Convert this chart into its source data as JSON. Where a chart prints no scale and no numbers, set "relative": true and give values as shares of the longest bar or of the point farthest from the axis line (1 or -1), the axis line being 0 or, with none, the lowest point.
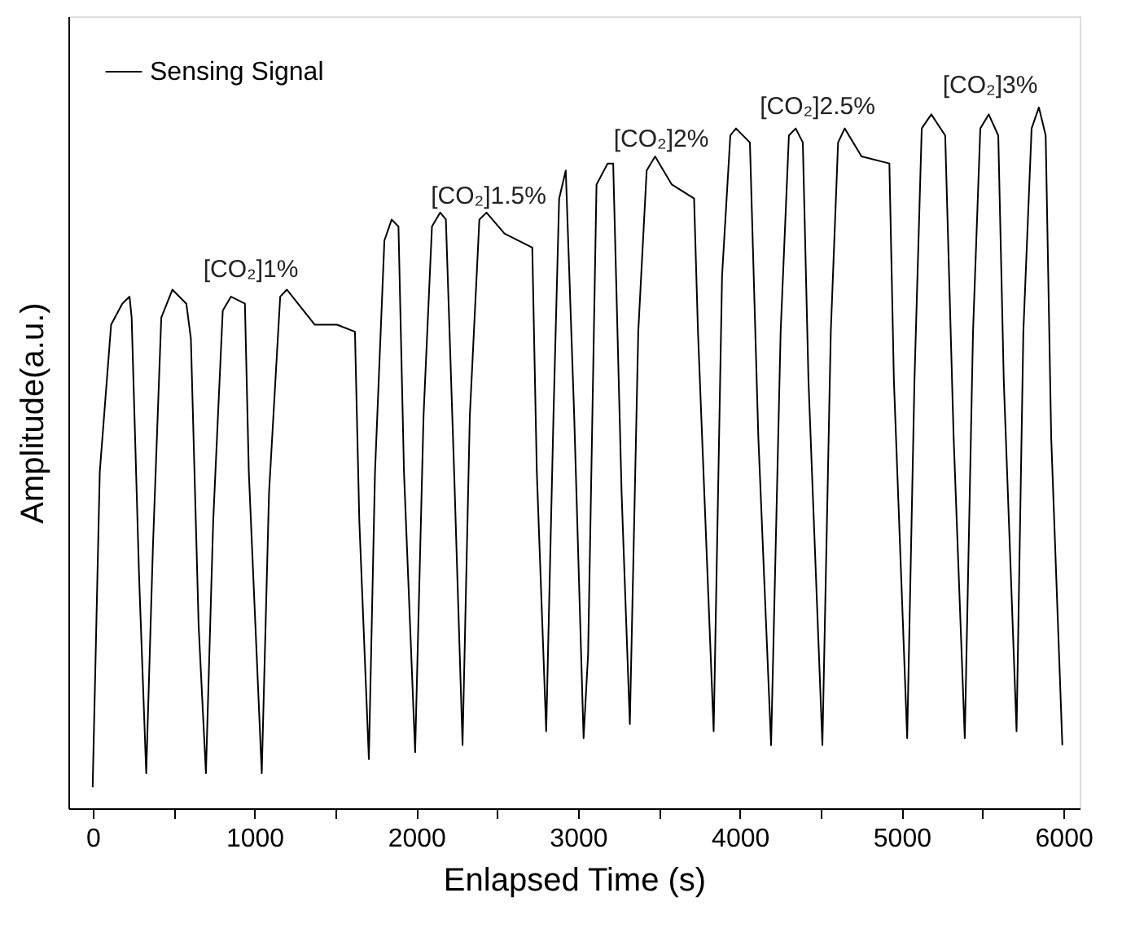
{
  "chart_data": {
    "type": "line",
    "relative": true,
    "xlabel": "Enlapsed Time (s)",
    "ylabel": "Amplitude(a.u.)",
    "xlim": [
      -150,
      6100
    ],
    "xticks": [
      0,
      {
        "value": 500,
        "label": null
      },
      1000,
      {
        "value": 1500,
        "label": null
      },
      2000,
      {
        "value": 2500,
        "label": null
      },
      3000,
      {
        "value": 3500,
        "label": null
      },
      4000,
      {
        "value": 4500,
        "label": null
      },
      5000,
      {
        "value": 5500,
        "label": null
      },
      6000
    ],
    "legend": "top left",
    "grid": false,
    "line_style": "solid",
    "series": [
      {
        "name": "Sensing Signal",
        "color": "#000000",
        "x": [
          0,
          44,
          114,
          183,
          228,
          241,
          287,
          331,
          372,
          424,
          493,
          579,
          607,
          655,
          700,
          745,
          804,
          855,
          941,
          965,
          1045,
          1090,
          1159,
          1200,
          1372,
          1510,
          1621,
          1648,
          1707,
          1745,
          1803,
          1848,
          1890,
          1924,
          1993,
          2045,
          2097,
          2148,
          2183,
          2234,
          2286,
          2331,
          2390,
          2434,
          2545,
          2717,
          2745,
          2803,
          2848,
          2883,
          2924,
          2976,
          3034,
          3062,
          3114,
          3183,
          3217,
          3269,
          3320,
          3372,
          3424,
          3476,
          3579,
          3717,
          3741,
          3838,
          3890,
          3941,
          3976,
          4062,
          4114,
          4193,
          4252,
          4303,
          4345,
          4389,
          4424,
          4510,
          4562,
          4607,
          4648,
          4752,
          4924,
          4952,
          5034,
          5079,
          5124,
          5183,
          5269,
          5321,
          5390,
          5441,
          5486,
          5538,
          5597,
          5631,
          5710,
          5752,
          5803,
          5848,
          5890,
          5924,
          5993
        ],
        "values": [
          0.03,
          0.48,
          0.69,
          0.72,
          0.73,
          0.7,
          0.33,
          0.05,
          0.37,
          0.7,
          0.74,
          0.72,
          0.67,
          0.26,
          0.05,
          0.41,
          0.71,
          0.73,
          0.72,
          0.48,
          0.05,
          0.45,
          0.73,
          0.74,
          0.69,
          0.69,
          0.68,
          0.41,
          0.07,
          0.48,
          0.81,
          0.84,
          0.83,
          0.48,
          0.08,
          0.56,
          0.83,
          0.85,
          0.84,
          0.48,
          0.09,
          0.56,
          0.84,
          0.85,
          0.82,
          0.8,
          0.48,
          0.11,
          0.56,
          0.87,
          0.91,
          0.56,
          0.1,
          0.22,
          0.89,
          0.92,
          0.92,
          0.45,
          0.12,
          0.68,
          0.91,
          0.93,
          0.89,
          0.87,
          0.68,
          0.11,
          0.76,
          0.96,
          0.97,
          0.95,
          0.53,
          0.09,
          0.68,
          0.96,
          0.97,
          0.95,
          0.61,
          0.09,
          0.68,
          0.95,
          0.97,
          0.93,
          0.92,
          0.61,
          0.1,
          0.61,
          0.97,
          0.99,
          0.96,
          0.53,
          0.1,
          0.68,
          0.97,
          0.99,
          0.96,
          0.61,
          0.11,
          0.68,
          0.97,
          1.0,
          0.96,
          0.53,
          0.09
        ]
      }
    ],
    "annotations": [
      "[CO₂]1%",
      "[CO₂]1.5%",
      "[CO₂]2%",
      "[CO₂]2.5%",
      "[CO₂]3%"
    ]
  }
}
